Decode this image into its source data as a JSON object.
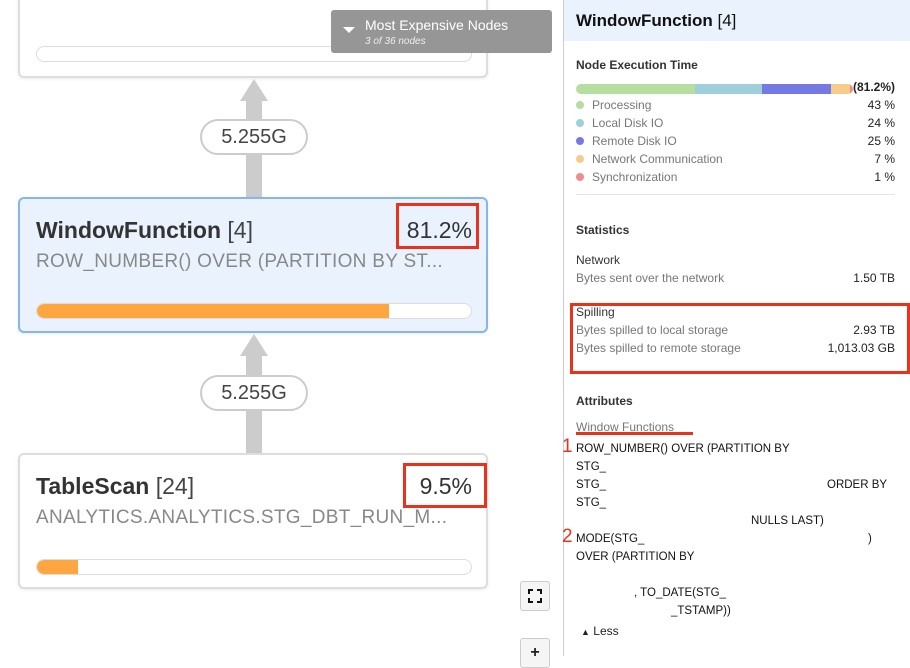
{
  "canvas": {
    "menu": {
      "title": "Most Expensive Nodes",
      "subtitle": "3 of 36 nodes"
    },
    "edges": [
      "5.255G",
      "5.255G"
    ],
    "nodes": [
      {
        "name": "WindowFunction",
        "id": "[4]",
        "percent": "81.2%",
        "detail": "ROW_NUMBER() OVER (PARTITION BY ST...",
        "progress": 81.2
      },
      {
        "name": "TableScan",
        "id": "[24]",
        "percent": "9.5%",
        "detail": "ANALYTICS.ANALYTICS.STG_DBT_RUN_M...",
        "progress": 9.5
      }
    ],
    "controls": {
      "fit_icon": "fit-screen-icon",
      "zoom_in": "+"
    }
  },
  "panel": {
    "title": "WindowFunction",
    "id": "[4]",
    "execution": {
      "heading": "Node Execution Time",
      "total": "(81.2%)",
      "items": [
        {
          "label": "Processing",
          "value": "43 %",
          "color": "#b5dea0",
          "pct": 43
        },
        {
          "label": "Local Disk IO",
          "value": "24 %",
          "color": "#9fcfdb",
          "pct": 24
        },
        {
          "label": "Remote Disk IO",
          "value": "25 %",
          "color": "#7479e3",
          "pct": 25
        },
        {
          "label": "Network Communication",
          "value": "7 %",
          "color": "#f7cc8a",
          "pct": 7
        },
        {
          "label": "Synchronization",
          "value": "1 %",
          "color": "#f08c8c",
          "pct": 1
        }
      ]
    },
    "statistics": {
      "heading": "Statistics",
      "network": {
        "label": "Network",
        "rows": [
          {
            "label": "Bytes sent over the network",
            "value": "1.50 TB"
          }
        ]
      },
      "spilling": {
        "label": "Spilling",
        "rows": [
          {
            "label": "Bytes spilled to local storage",
            "value": "2.93 TB"
          },
          {
            "label": "Bytes spilled to remote storage",
            "value": "1,013.03 GB"
          }
        ]
      }
    },
    "attributes": {
      "heading": "Attributes",
      "label": "Window Functions",
      "markers": [
        "1",
        "2"
      ],
      "lines": [
        "ROW_NUMBER() OVER (PARTITION BY",
        "STG_",
        "STG_",
        "ORDER BY",
        "STG_",
        "NULLS LAST)",
        "MODE(STG_",
        ")",
        "OVER (PARTITION BY",
        ", TO_DATE(STG_",
        "_TSTAMP))"
      ],
      "less": "Less"
    }
  }
}
